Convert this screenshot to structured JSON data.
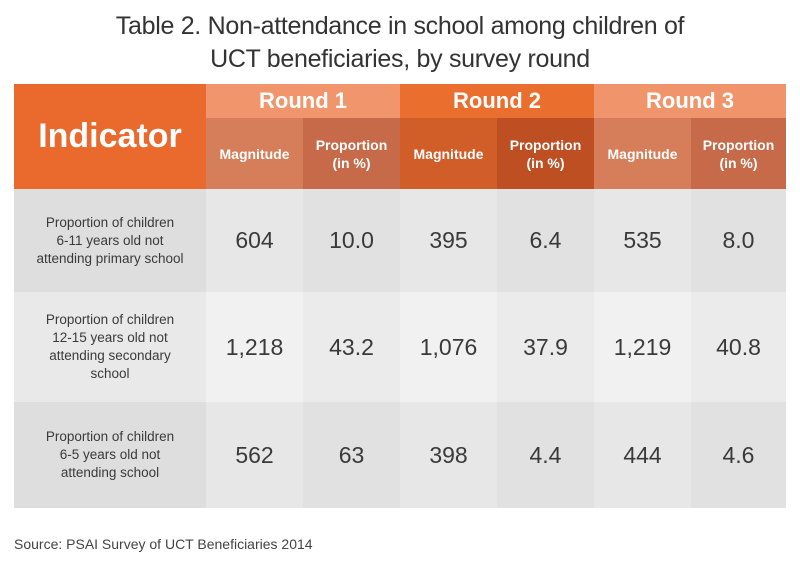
{
  "title_line1": "Table 2. Non-attendance in school among children of",
  "title_line2": "UCT beneficiaries, by survey round",
  "header": {
    "indicator": "Indicator",
    "rounds": [
      "Round 1",
      "Round 2",
      "Round 3"
    ],
    "magnitude": "Magnitude",
    "proportion_line1": "Proportion",
    "proportion_line2": "(in %)"
  },
  "rows": [
    {
      "label_lines": [
        "Proportion of children",
        "6-11 years old not",
        "attending primary school"
      ],
      "values": [
        "604",
        "10.0",
        "395",
        "6.4",
        "535",
        "8.0"
      ]
    },
    {
      "label_lines": [
        "Proportion of children",
        "12-15 years old not",
        "attending secondary",
        "school"
      ],
      "values": [
        "1,218",
        "43.2",
        "1,076",
        "37.9",
        "1,219",
        "40.8"
      ]
    },
    {
      "label_lines": [
        "Proportion of children",
        "6-5 years old not",
        "attending school"
      ],
      "values": [
        "562",
        "63",
        "398",
        "4.4",
        "444",
        "4.6"
      ]
    }
  ],
  "source": "Source: PSAI Survey of UCT Beneficiaries 2014",
  "colors": {
    "orange": "#ea6a2d",
    "light_orange": "#f1956c",
    "row_gray": "#e7e7e7"
  },
  "chart_data": {
    "type": "table",
    "title": "Table 2. Non-attendance in school among children of UCT beneficiaries, by survey round",
    "columns": [
      "Indicator",
      "Round 1 Magnitude",
      "Round 1 Proportion (in %)",
      "Round 2 Magnitude",
      "Round 2 Proportion (in %)",
      "Round 3 Magnitude",
      "Round 3 Proportion (in %)"
    ],
    "rows": [
      [
        "Proportion of children 6-11 years old not attending primary school",
        604,
        10.0,
        395,
        6.4,
        535,
        8.0
      ],
      [
        "Proportion of children 12-15 years old not attending secondary school",
        1218,
        43.2,
        1076,
        37.9,
        1219,
        40.8
      ],
      [
        "Proportion of children 6-5 years old not attending school",
        562,
        63,
        398,
        4.4,
        444,
        4.6
      ]
    ]
  }
}
